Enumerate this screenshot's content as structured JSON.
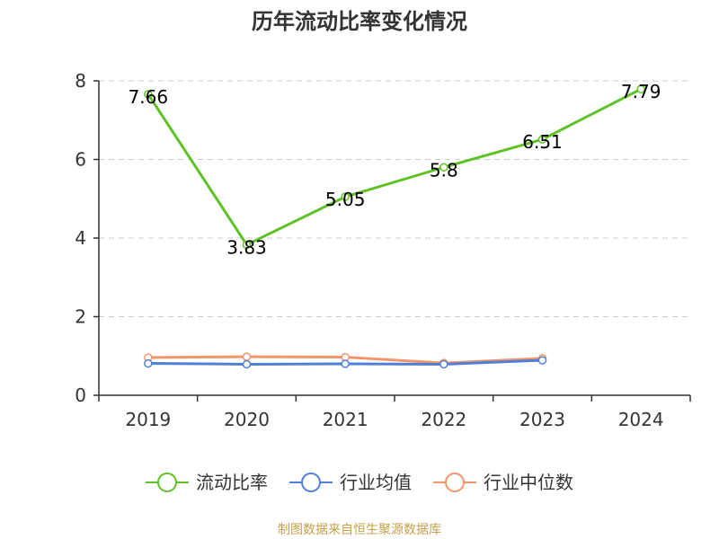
{
  "chart_data": {
    "type": "line",
    "title": "历年流动比率变化情况",
    "categories": [
      "2019",
      "2020",
      "2021",
      "2022",
      "2023",
      "2024"
    ],
    "ylim": [
      0,
      8
    ],
    "yticks": [
      0,
      2,
      4,
      6,
      8
    ],
    "grid": true,
    "legend_position": "bottom",
    "series": [
      {
        "name": "流动比率",
        "color": "#5ec226",
        "values": [
          7.66,
          3.83,
          5.05,
          5.8,
          6.51,
          7.79
        ],
        "labels": [
          "7.66",
          "3.83",
          "5.05",
          "5.8",
          "6.51",
          "7.79"
        ],
        "show_labels": true
      },
      {
        "name": "行业均值",
        "color": "#4f7fd9",
        "values": [
          0.81,
          0.79,
          0.8,
          0.79,
          0.89,
          null
        ],
        "show_labels": false
      },
      {
        "name": "行业中位数",
        "color": "#f2956b",
        "values": [
          0.96,
          0.98,
          0.97,
          0.82,
          0.94,
          null
        ],
        "show_labels": false
      }
    ]
  },
  "source_text": "制图数据来自恒生聚源数据库"
}
